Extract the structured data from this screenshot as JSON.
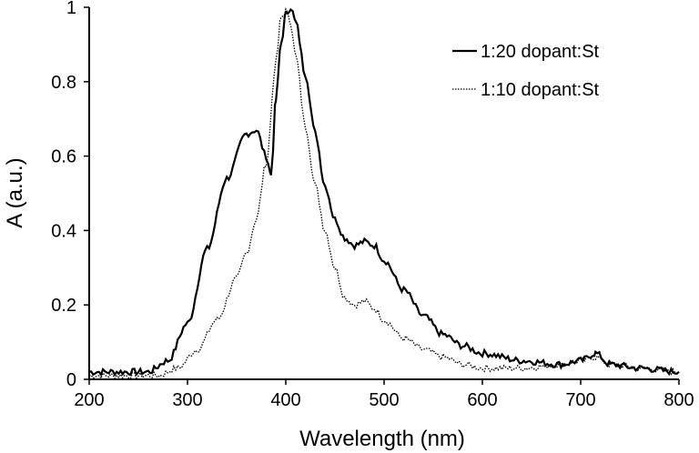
{
  "chart_data": {
    "type": "line",
    "title": "",
    "xlabel": "Wavelength (nm)",
    "ylabel": "A (a.u.)",
    "xlim": [
      200,
      800
    ],
    "ylim": [
      0,
      1
    ],
    "x_ticks": [
      200,
      300,
      400,
      500,
      600,
      700,
      800
    ],
    "y_ticks": [
      0,
      0.2,
      0.4,
      0.6,
      0.8,
      1
    ],
    "x_tick_labels": [
      "200",
      "300",
      "400",
      "500",
      "600",
      "700",
      "800"
    ],
    "y_tick_labels": [
      "0",
      "0.2",
      "0.4",
      "0.6",
      "0.8",
      "1"
    ],
    "grid": false,
    "legend_position": "top-right",
    "series": [
      {
        "name": "1:20 dopant:St",
        "style": "solid",
        "color": "#000000",
        "points": [
          [
            200,
            0.02
          ],
          [
            260,
            0.02
          ],
          [
            280,
            0.05
          ],
          [
            300,
            0.15
          ],
          [
            320,
            0.35
          ],
          [
            340,
            0.54
          ],
          [
            360,
            0.66
          ],
          [
            370,
            0.67
          ],
          [
            380,
            0.6
          ],
          [
            385,
            0.55
          ],
          [
            390,
            0.75
          ],
          [
            395,
            0.9
          ],
          [
            400,
            0.98
          ],
          [
            405,
            1.0
          ],
          [
            410,
            0.96
          ],
          [
            420,
            0.82
          ],
          [
            430,
            0.66
          ],
          [
            440,
            0.52
          ],
          [
            450,
            0.43
          ],
          [
            460,
            0.38
          ],
          [
            470,
            0.36
          ],
          [
            480,
            0.37
          ],
          [
            490,
            0.36
          ],
          [
            500,
            0.32
          ],
          [
            520,
            0.24
          ],
          [
            540,
            0.17
          ],
          [
            560,
            0.12
          ],
          [
            580,
            0.09
          ],
          [
            600,
            0.07
          ],
          [
            640,
            0.05
          ],
          [
            680,
            0.04
          ],
          [
            700,
            0.05
          ],
          [
            715,
            0.07
          ],
          [
            730,
            0.04
          ],
          [
            760,
            0.03
          ],
          [
            800,
            0.02
          ]
        ]
      },
      {
        "name": "1:10 dopant:St",
        "style": "dotted",
        "color": "#000000",
        "points": [
          [
            200,
            0.01
          ],
          [
            270,
            0.01
          ],
          [
            290,
            0.03
          ],
          [
            310,
            0.08
          ],
          [
            330,
            0.16
          ],
          [
            350,
            0.27
          ],
          [
            360,
            0.34
          ],
          [
            370,
            0.43
          ],
          [
            380,
            0.58
          ],
          [
            390,
            0.85
          ],
          [
            395,
            0.97
          ],
          [
            400,
            0.99
          ],
          [
            405,
            0.96
          ],
          [
            410,
            0.87
          ],
          [
            420,
            0.68
          ],
          [
            430,
            0.52
          ],
          [
            440,
            0.4
          ],
          [
            450,
            0.3
          ],
          [
            460,
            0.22
          ],
          [
            470,
            0.2
          ],
          [
            480,
            0.21
          ],
          [
            490,
            0.19
          ],
          [
            500,
            0.16
          ],
          [
            520,
            0.11
          ],
          [
            540,
            0.08
          ],
          [
            560,
            0.06
          ],
          [
            580,
            0.04
          ],
          [
            600,
            0.03
          ],
          [
            640,
            0.03
          ],
          [
            680,
            0.04
          ],
          [
            700,
            0.05
          ],
          [
            715,
            0.06
          ],
          [
            730,
            0.04
          ],
          [
            760,
            0.03
          ],
          [
            800,
            0.02
          ]
        ]
      }
    ]
  }
}
